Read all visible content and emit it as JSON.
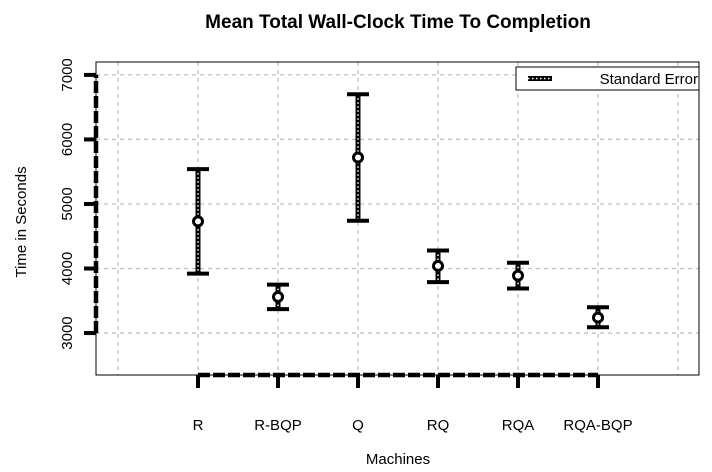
{
  "chart_data": {
    "type": "scatter",
    "title": "Mean Total Wall-Clock Time To Completion",
    "xlabel": "Machines",
    "ylabel": "Time in Seconds",
    "categories": [
      "R",
      "R-BQP",
      "Q",
      "RQ",
      "RQA",
      "RQA-BQP"
    ],
    "series": [
      {
        "name": "Standard Error",
        "values": [
          4730,
          3560,
          5720,
          4040,
          3890,
          3240
        ],
        "lower": [
          3920,
          3370,
          4740,
          3790,
          3690,
          3090
        ],
        "upper": [
          5540,
          3750,
          6700,
          4280,
          4090,
          3400
        ]
      }
    ],
    "yticks": [
      3000,
      4000,
      5000,
      6000,
      7000
    ],
    "ylim": [
      2350,
      7200
    ],
    "grid": true,
    "legend_position": "top-right",
    "colors": {
      "marks": "#000000",
      "grid": "#c0c0c0",
      "background": "#ffffff"
    }
  }
}
